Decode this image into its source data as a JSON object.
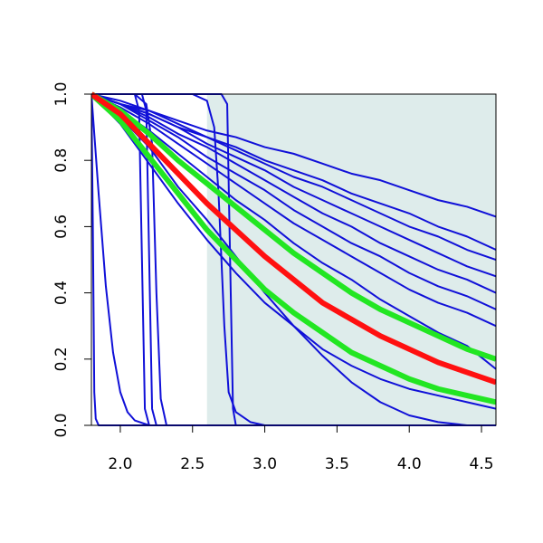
{
  "chart_data": {
    "type": "line",
    "xlim": [
      1.8,
      4.6
    ],
    "ylim": [
      0,
      1
    ],
    "xticks": [
      {
        "value": 2.0,
        "label": "2.0"
      },
      {
        "value": 2.5,
        "label": "2.5"
      },
      {
        "value": 3.0,
        "label": "3.0"
      },
      {
        "value": 3.5,
        "label": "3.5"
      },
      {
        "value": 4.0,
        "label": "4.0"
      },
      {
        "value": 4.5,
        "label": "4.5"
      }
    ],
    "yticks": [
      {
        "value": 0,
        "label": "0.0"
      },
      {
        "value": 0.2,
        "label": "0.2"
      },
      {
        "value": 0.4,
        "label": "0.4"
      },
      {
        "value": 0.6,
        "label": "0.6"
      },
      {
        "value": 0.8,
        "label": "0.8"
      },
      {
        "value": 1.0,
        "label": "1.0"
      }
    ],
    "shade": {
      "xlim": [
        2.6,
        4.6
      ],
      "color": "#deeceb"
    },
    "x": [
      1.8,
      2.0,
      2.2,
      2.4,
      2.6,
      2.8,
      3.0,
      3.2,
      3.4,
      3.6,
      3.8,
      4.0,
      4.2,
      4.4,
      4.6
    ],
    "series": [
      {
        "color": "#1010d8",
        "width": 2,
        "values": [
          1,
          0.97,
          0.95,
          0.92,
          0.89,
          0.87,
          0.84,
          0.82,
          0.79,
          0.76,
          0.74,
          0.71,
          0.68,
          0.66,
          0.63
        ]
      },
      {
        "color": "#1010d8",
        "width": 2,
        "values": [
          1,
          0.97,
          0.94,
          0.9,
          0.87,
          0.84,
          0.8,
          0.77,
          0.74,
          0.7,
          0.67,
          0.64,
          0.6,
          0.57,
          0.53
        ]
      },
      {
        "color": "#1010d8",
        "width": 2,
        "values": [
          1,
          0.98,
          0.95,
          0.91,
          0.87,
          0.83,
          0.79,
          0.75,
          0.72,
          0.68,
          0.64,
          0.6,
          0.57,
          0.53,
          0.5
        ]
      },
      {
        "color": "#1010d8",
        "width": 2,
        "values": [
          1,
          0.97,
          0.94,
          0.9,
          0.85,
          0.81,
          0.77,
          0.72,
          0.68,
          0.64,
          0.6,
          0.56,
          0.52,
          0.48,
          0.45
        ]
      },
      {
        "color": "#1010d8",
        "width": 2,
        "values": [
          1,
          0.97,
          0.93,
          0.88,
          0.84,
          0.79,
          0.74,
          0.69,
          0.64,
          0.6,
          0.55,
          0.51,
          0.47,
          0.44,
          0.4
        ]
      },
      {
        "color": "#1010d8",
        "width": 2,
        "values": [
          1,
          0.97,
          0.92,
          0.87,
          0.81,
          0.76,
          0.71,
          0.65,
          0.6,
          0.55,
          0.51,
          0.46,
          0.42,
          0.39,
          0.35
        ]
      },
      {
        "color": "#1010d8",
        "width": 2,
        "values": [
          1,
          0.96,
          0.91,
          0.85,
          0.79,
          0.73,
          0.67,
          0.61,
          0.56,
          0.51,
          0.46,
          0.41,
          0.37,
          0.34,
          0.3
        ]
      },
      {
        "color": "#1010d8",
        "width": 2,
        "values": [
          1,
          0.95,
          0.89,
          0.82,
          0.75,
          0.68,
          0.62,
          0.55,
          0.49,
          0.44,
          0.38,
          0.33,
          0.28,
          0.24,
          0.17
        ]
      },
      {
        "color": "#1010d8",
        "width": 2,
        "values": [
          1,
          0.91,
          0.79,
          0.67,
          0.56,
          0.46,
          0.37,
          0.3,
          0.23,
          0.18,
          0.14,
          0.11,
          0.09,
          0.07,
          0.05
        ]
      },
      {
        "color": "#1010d8",
        "width": 2,
        "values": [
          1,
          0.93,
          0.84,
          0.72,
          0.62,
          0.51,
          0.4,
          0.3,
          0.21,
          0.13,
          0.07,
          0.03,
          0.01,
          0,
          0
        ]
      },
      {
        "color": "#1010d8",
        "width": 2,
        "x": [
          1.8,
          1.81,
          1.82,
          1.83,
          1.85,
          4.6
        ],
        "values": [
          1,
          0.6,
          0.1,
          0.02,
          0,
          0
        ]
      },
      {
        "color": "#1010d8",
        "width": 2,
        "x": [
          1.8,
          1.85,
          1.9,
          1.95,
          2.0,
          2.05,
          2.1,
          2.2,
          4.6
        ],
        "values": [
          1,
          0.7,
          0.42,
          0.22,
          0.1,
          0.04,
          0.015,
          0,
          0
        ]
      },
      {
        "color": "#1010d8",
        "width": 2,
        "x": [
          1.8,
          2.1,
          2.13,
          2.15,
          2.17,
          2.2,
          4.6
        ],
        "values": [
          1,
          1,
          0.95,
          0.5,
          0.05,
          0,
          0
        ]
      },
      {
        "color": "#1010d8",
        "width": 2,
        "x": [
          1.8,
          2.15,
          2.18,
          2.2,
          2.22,
          2.25,
          4.6
        ],
        "values": [
          1,
          1,
          0.95,
          0.5,
          0.05,
          0,
          0
        ]
      },
      {
        "color": "#1010d8",
        "width": 2,
        "x": [
          1.8,
          2.1,
          2.18,
          2.22,
          2.25,
          2.28,
          2.32,
          4.6
        ],
        "values": [
          1,
          1,
          0.97,
          0.85,
          0.4,
          0.08,
          0,
          0
        ]
      },
      {
        "color": "#1010d8",
        "width": 2,
        "x": [
          1.8,
          2.5,
          2.6,
          2.65,
          2.68,
          2.72,
          2.75,
          2.8,
          2.9,
          3.0,
          4.6
        ],
        "values": [
          1,
          1,
          0.98,
          0.9,
          0.7,
          0.3,
          0.1,
          0.04,
          0.01,
          0,
          0
        ]
      },
      {
        "color": "#1010d8",
        "width": 2,
        "x": [
          1.8,
          2.7,
          2.74,
          2.76,
          2.78,
          2.8,
          4.6
        ],
        "values": [
          1,
          1,
          0.97,
          0.5,
          0.05,
          0,
          0
        ]
      },
      {
        "color": "#22e622",
        "width": 6,
        "values": [
          1,
          0.95,
          0.88,
          0.8,
          0.73,
          0.66,
          0.59,
          0.52,
          0.46,
          0.4,
          0.35,
          0.31,
          0.27,
          0.23,
          0.2
        ]
      },
      {
        "color": "#22e622",
        "width": 6,
        "values": [
          1,
          0.92,
          0.81,
          0.7,
          0.59,
          0.5,
          0.41,
          0.34,
          0.28,
          0.22,
          0.18,
          0.14,
          0.11,
          0.09,
          0.07
        ]
      },
      {
        "color": "#ff1010",
        "width": 6,
        "values": [
          1,
          0.94,
          0.85,
          0.76,
          0.67,
          0.59,
          0.51,
          0.44,
          0.37,
          0.32,
          0.27,
          0.23,
          0.19,
          0.16,
          0.13
        ]
      }
    ]
  }
}
